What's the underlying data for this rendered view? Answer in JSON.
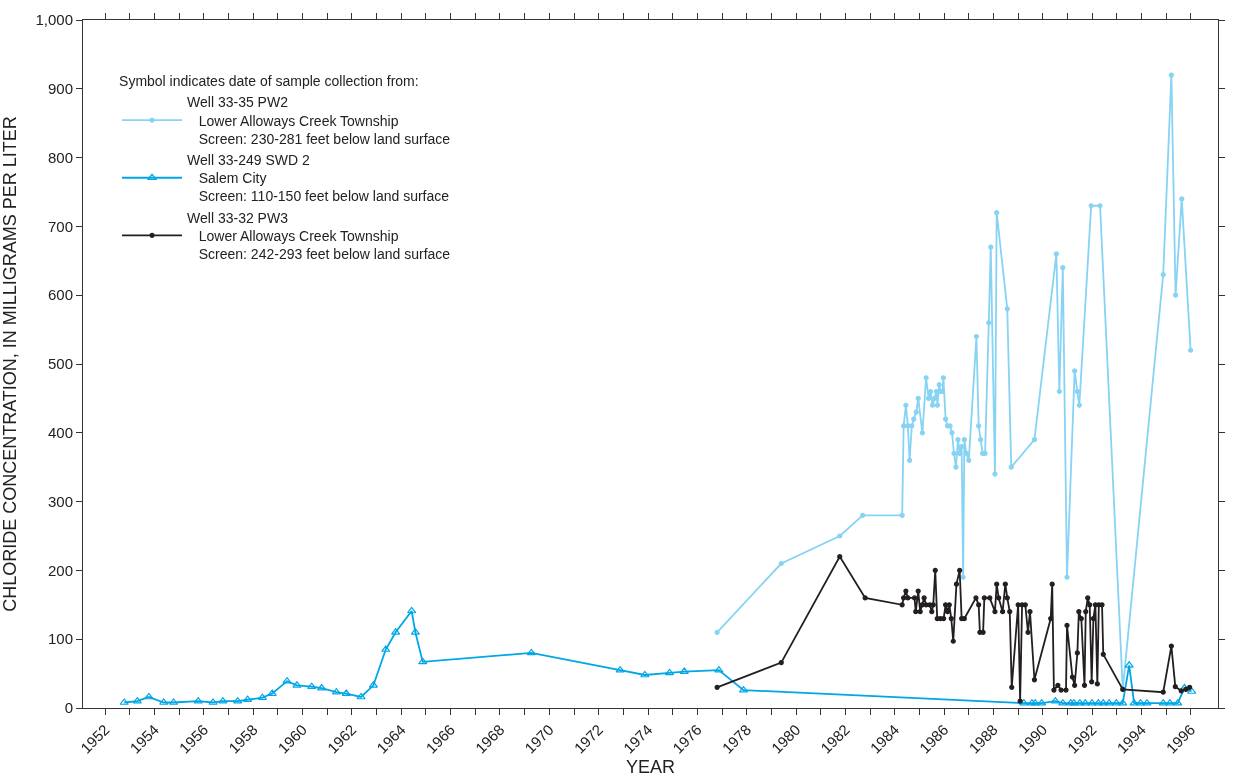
{
  "chart_data": {
    "type": "line",
    "xlabel": "YEAR",
    "ylabel": "CHLORIDE CONCENTRATION, IN MILLIGRAMS PER LITER",
    "legend_title": "Symbol indicates date of sample collection from:",
    "legend": "top left",
    "xlim": [
      1951.1,
      1997.1
    ],
    "ylim": [
      0,
      1000
    ],
    "xticks": [
      1952,
      {
        "value": 1953,
        "label": null
      },
      1954,
      {
        "value": 1955,
        "label": null
      },
      1956,
      {
        "value": 1957,
        "label": null
      },
      1958,
      {
        "value": 1959,
        "label": null
      },
      1960,
      {
        "value": 1961,
        "label": null
      },
      1962,
      {
        "value": 1963,
        "label": null
      },
      1964,
      {
        "value": 1965,
        "label": null
      },
      1966,
      {
        "value": 1967,
        "label": null
      },
      1968,
      {
        "value": 1969,
        "label": null
      },
      1970,
      {
        "value": 1971,
        "label": null
      },
      1972,
      {
        "value": 1973,
        "label": null
      },
      1974,
      {
        "value": 1975,
        "label": null
      },
      1976,
      {
        "value": 1977,
        "label": null
      },
      1978,
      {
        "value": 1979,
        "label": null
      },
      1980,
      {
        "value": 1981,
        "label": null
      },
      1982,
      {
        "value": 1983,
        "label": null
      },
      1984,
      {
        "value": 1985,
        "label": null
      },
      1986,
      {
        "value": 1987,
        "label": null
      },
      1988,
      {
        "value": 1989,
        "label": null
      },
      1990,
      {
        "value": 1991,
        "label": null
      },
      1992,
      {
        "value": 1993,
        "label": null
      },
      1994,
      {
        "value": 1995,
        "label": null
      },
      1996
    ],
    "yticks": [
      0,
      100,
      200,
      300,
      400,
      500,
      600,
      700,
      800,
      900,
      {
        "value": 1000,
        "label": "1,000"
      }
    ],
    "series": [
      {
        "name": "Well 33-35 PW2\n   Lower Alloways Creek Township\n   Screen: 230-281 feet below land surface",
        "color": "#87d3f4",
        "marker": "circle",
        "x": [
          1976.8,
          1979.4,
          1981.77,
          1982.7,
          1984.3,
          1984.36,
          1984.45,
          1984.53,
          1984.6,
          1984.69,
          1984.77,
          1984.87,
          1984.95,
          1985.12,
          1985.27,
          1985.37,
          1985.45,
          1985.53,
          1985.61,
          1985.69,
          1985.73,
          1985.8,
          1985.85,
          1985.93,
          1985.97,
          1986.06,
          1986.14,
          1986.24,
          1986.32,
          1986.4,
          1986.48,
          1986.56,
          1986.63,
          1986.71,
          1986.77,
          1986.82,
          1986.9,
          1987.0,
          1987.31,
          1987.4,
          1987.48,
          1987.56,
          1987.66,
          1987.81,
          1987.89,
          1988.06,
          1988.13,
          1988.56,
          1988.72,
          1989.66,
          1990.55,
          1990.67,
          1990.81,
          1990.98,
          1991.29,
          1991.4,
          1991.48,
          1991.96,
          1992.32,
          1993.24,
          1994.88,
          1995.21,
          1995.38,
          1995.63,
          1995.99
        ],
        "values": [
          110,
          210,
          250,
          280,
          280,
          410,
          440,
          410,
          360,
          410,
          420,
          430,
          450,
          400,
          480,
          450,
          460,
          440,
          450,
          460,
          440,
          470,
          460,
          460,
          480,
          420,
          410,
          410,
          400,
          370,
          350,
          390,
          370,
          380,
          190,
          390,
          370,
          360,
          540,
          410,
          390,
          370,
          370,
          560,
          670,
          340,
          720,
          580,
          350,
          390,
          660,
          460,
          640,
          190,
          490,
          460,
          440,
          730,
          730,
          27,
          630,
          920,
          600,
          740,
          520
        ]
      },
      {
        "name": "Well 33-249 SWD 2\n   Salem City\n   Screen: 110-150 feet below land surface",
        "color": "#00a6e6",
        "marker": "triangle",
        "x": [
          1952.77,
          1953.3,
          1953.77,
          1954.37,
          1954.77,
          1955.77,
          1956.37,
          1956.77,
          1957.37,
          1957.77,
          1958.37,
          1958.77,
          1959.37,
          1959.77,
          1960.37,
          1960.77,
          1961.37,
          1961.77,
          1962.37,
          1962.87,
          1963.37,
          1963.77,
          1964.42,
          1964.57,
          1964.87,
          1969.27,
          1972.87,
          1973.87,
          1974.87,
          1975.47,
          1976.87,
          1977.87,
          1989.23,
          1989.56,
          1989.69,
          1989.95,
          1990.51,
          1990.81,
          1991.13,
          1991.26,
          1991.5,
          1991.72,
          1991.99,
          1992.25,
          1992.45,
          1992.69,
          1992.98,
          1993.24,
          1993.5,
          1993.7,
          1993.96,
          1994.22,
          1994.88,
          1995.15,
          1995.47,
          1995.74,
          1996.03
        ],
        "values": [
          8,
          10,
          16,
          8,
          8,
          10,
          8,
          10,
          10,
          12,
          15,
          21,
          39,
          33,
          31,
          29,
          23,
          21,
          16,
          33,
          85,
          110,
          141,
          110,
          67,
          80,
          55,
          48,
          51,
          53,
          55,
          26,
          7,
          7,
          7,
          7,
          10,
          7,
          7,
          7,
          7,
          7,
          7,
          7,
          7,
          7,
          7,
          7,
          62,
          7,
          7,
          7,
          7,
          7,
          7,
          29,
          24
        ]
      },
      {
        "name": "Well 33-32 PW3\n   Lower Alloways Creek Township\n   Screen: 242-293 feet below land surface",
        "color": "#231f20",
        "marker": "circle",
        "x": [
          1976.8,
          1979.4,
          1981.77,
          1982.8,
          1984.3,
          1984.36,
          1984.45,
          1984.53,
          1984.8,
          1984.85,
          1984.95,
          1985.03,
          1985.11,
          1985.19,
          1985.27,
          1985.42,
          1985.5,
          1985.56,
          1985.64,
          1985.72,
          1985.85,
          1985.98,
          1986.06,
          1986.14,
          1986.21,
          1986.29,
          1986.37,
          1986.5,
          1986.63,
          1986.71,
          1986.82,
          1987.29,
          1987.4,
          1987.45,
          1987.58,
          1987.63,
          1987.85,
          1988.06,
          1988.13,
          1988.21,
          1988.37,
          1988.48,
          1988.56,
          1988.66,
          1988.74,
          1989.0,
          1989.08,
          1989.16,
          1989.29,
          1989.4,
          1989.48,
          1989.66,
          1990.32,
          1990.38,
          1990.45,
          1990.61,
          1990.74,
          1990.94,
          1990.98,
          1991.2,
          1991.29,
          1991.4,
          1991.46,
          1991.56,
          1991.69,
          1991.74,
          1991.82,
          1991.9,
          1991.98,
          1992.05,
          1992.13,
          1992.21,
          1992.27,
          1992.4,
          1992.45,
          1993.24,
          1994.88,
          1995.21,
          1995.37,
          1995.61,
          1995.8,
          1995.95
        ],
        "values": [
          30,
          66,
          220,
          160,
          150,
          160,
          170,
          160,
          160,
          140,
          170,
          140,
          150,
          160,
          150,
          150,
          140,
          150,
          200,
          130,
          130,
          130,
          150,
          140,
          150,
          130,
          97,
          180,
          200,
          130,
          130,
          160,
          150,
          110,
          110,
          160,
          160,
          140,
          180,
          160,
          140,
          180,
          160,
          140,
          30,
          150,
          10,
          150,
          150,
          110,
          140,
          41,
          130,
          180,
          26,
          33,
          26,
          26,
          120,
          45,
          33,
          80,
          140,
          130,
          33,
          140,
          160,
          150,
          38,
          130,
          150,
          35,
          150,
          150,
          78,
          27,
          23,
          90,
          31,
          25,
          27,
          30
        ]
      }
    ]
  }
}
